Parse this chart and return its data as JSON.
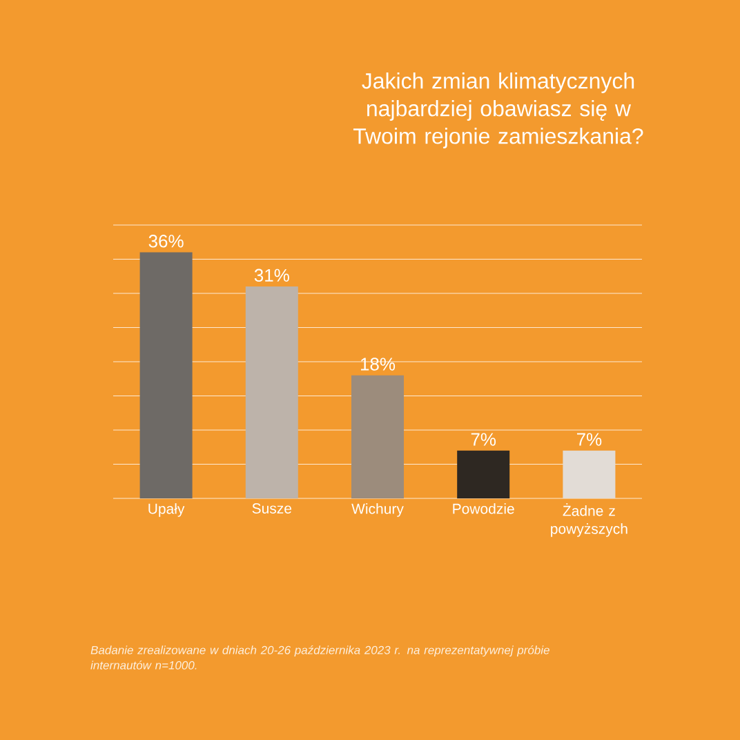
{
  "chart_data": {
    "type": "bar",
    "title": "Jakich zmian klimatycznych najbardziej obawiasz się w Twoim rejonie zamieszkania?",
    "categories": [
      "Upały",
      "Susze",
      "Wichury",
      "Powodzie",
      "Żadne z powyższych"
    ],
    "values": [
      36,
      31,
      18,
      7,
      7
    ],
    "colors": [
      "#6e6a66",
      "#bdb3aa",
      "#9c8c7c",
      "#2e2822",
      "#e2dcd6"
    ],
    "value_labels": [
      "36%",
      "31%",
      "18%",
      "7%",
      "7%"
    ],
    "ylim": [
      0,
      40
    ],
    "yticks": [
      {
        "value": 0,
        "label": null
      },
      {
        "value": 5,
        "label": null
      },
      {
        "value": 10,
        "label": null
      },
      {
        "value": 15,
        "label": null
      },
      {
        "value": 20,
        "label": null
      },
      {
        "value": 25,
        "label": null
      },
      {
        "value": 30,
        "label": null
      },
      {
        "value": 35,
        "label": null
      },
      {
        "value": 40,
        "label": null
      }
    ],
    "grid": "y",
    "annotations": [
      "Badanie zrealizowane w dniach 20-26 października 2023 r. na reprezentatywnej próbie internautów n=1000."
    ]
  }
}
